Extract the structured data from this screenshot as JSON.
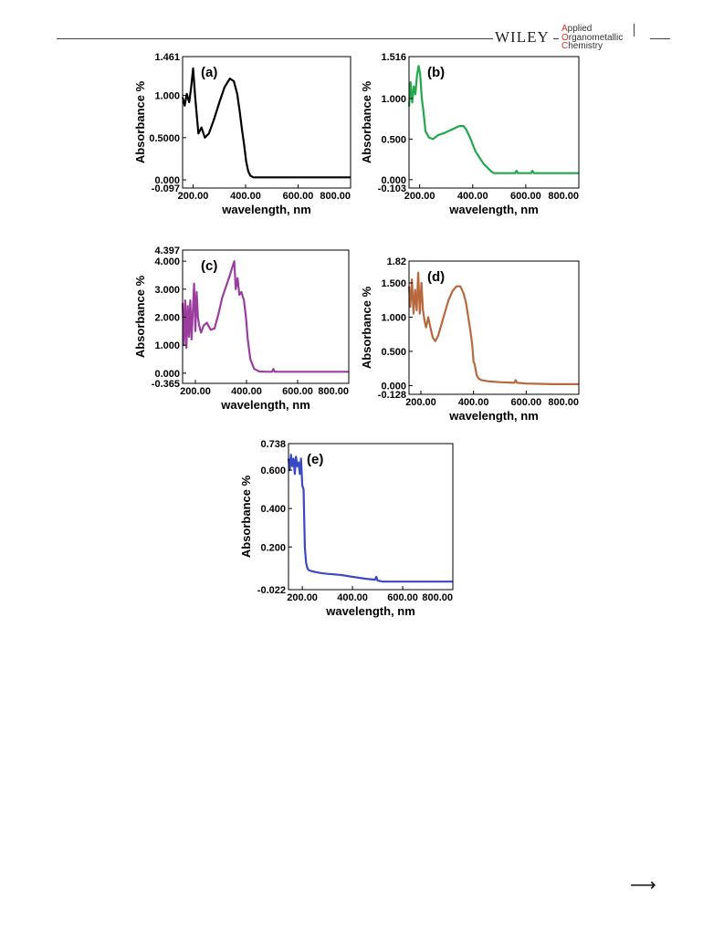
{
  "header": {
    "publisher": "WILEY",
    "journal_lines": [
      {
        "cap": "A",
        "rest": "pplied"
      },
      {
        "cap": "O",
        "rest": "rganometallic"
      },
      {
        "cap": "C",
        "rest": "hemistry"
      }
    ]
  },
  "footer": {
    "arrow": "⟶"
  },
  "chart_data": [
    {
      "id": "a",
      "type": "line",
      "panel_label": "(a)",
      "color": "#000000",
      "xlabel": "wavelength, nm",
      "ylabel": "Absorbance %",
      "xlim": [
        160,
        800
      ],
      "ylim": [
        -0.097,
        1.461
      ],
      "xticks": [
        200,
        400,
        600,
        800
      ],
      "xtick_labels": [
        "200.00",
        "400.00",
        "600.00",
        "800.00"
      ],
      "yticks": [
        -0.097,
        0,
        0.5,
        1.0,
        1.461
      ],
      "ytick_labels": [
        "-0.097",
        "0.000",
        "0.5000",
        "1.000",
        "1.461"
      ],
      "x": [
        160,
        168,
        176,
        185,
        192,
        200,
        208,
        220,
        232,
        245,
        260,
        280,
        300,
        320,
        340,
        355,
        368,
        378,
        386,
        395,
        402,
        410,
        418,
        430,
        460,
        500,
        600,
        700,
        800
      ],
      "y": [
        0.98,
        0.88,
        1.02,
        0.92,
        1.08,
        1.32,
        0.98,
        0.55,
        0.62,
        0.5,
        0.55,
        0.72,
        0.92,
        1.1,
        1.2,
        1.17,
        1.02,
        0.8,
        0.6,
        0.4,
        0.22,
        0.1,
        0.05,
        0.03,
        0.03,
        0.03,
        0.03,
        0.03,
        0.03
      ]
    },
    {
      "id": "b",
      "type": "line",
      "panel_label": "(b)",
      "color": "#21a84a",
      "xlabel": "wavelength, nm",
      "ylabel": "Absorbance %",
      "xlim": [
        160,
        800
      ],
      "ylim": [
        -0.103,
        1.516
      ],
      "xticks": [
        200,
        400,
        600,
        800
      ],
      "xtick_labels": [
        "200.00",
        "400.00",
        "600.00",
        "800.00"
      ],
      "yticks": [
        -0.103,
        0,
        0.5,
        1.0,
        1.516
      ],
      "ytick_labels": [
        "-0.103",
        "0.000",
        "0.500",
        "1.000",
        "1.516"
      ],
      "x": [
        160,
        166,
        172,
        178,
        184,
        190,
        196,
        202,
        208,
        214,
        222,
        235,
        250,
        270,
        290,
        310,
        330,
        350,
        365,
        375,
        390,
        410,
        440,
        470,
        480,
        500,
        560,
        565,
        570,
        620,
        625,
        630,
        700,
        800
      ],
      "y": [
        0.9,
        1.2,
        0.95,
        1.15,
        1.05,
        1.28,
        1.4,
        1.3,
        1.0,
        0.85,
        0.6,
        0.52,
        0.5,
        0.55,
        0.57,
        0.6,
        0.63,
        0.66,
        0.66,
        0.62,
        0.52,
        0.35,
        0.2,
        0.1,
        0.08,
        0.08,
        0.08,
        0.11,
        0.08,
        0.08,
        0.11,
        0.08,
        0.08,
        0.08
      ]
    },
    {
      "id": "c",
      "type": "line",
      "panel_label": "(c)",
      "color": "#9b3d9f",
      "xlabel": "wavelength, nm",
      "ylabel": "Absorbance %",
      "xlim": [
        150,
        800
      ],
      "ylim": [
        -0.365,
        4.397
      ],
      "xticks": [
        200,
        400,
        600,
        800
      ],
      "xtick_labels": [
        "200.00",
        "400.00",
        "600.00",
        "800.00"
      ],
      "yticks": [
        -0.365,
        0,
        1,
        2,
        3,
        4,
        4.397
      ],
      "ytick_labels": [
        "-0.365",
        "0.000",
        "1.000",
        "2.000",
        "3.000",
        "4.000",
        "4.397"
      ],
      "x": [
        150,
        155,
        160,
        165,
        170,
        175,
        180,
        185,
        190,
        195,
        200,
        205,
        210,
        215,
        222,
        232,
        245,
        260,
        275,
        290,
        305,
        320,
        335,
        345,
        352,
        358,
        365,
        372,
        380,
        390,
        398,
        405,
        415,
        430,
        450,
        480,
        500,
        505,
        510,
        600,
        700,
        800
      ],
      "y": [
        2.5,
        1.0,
        2.6,
        0.9,
        2.4,
        1.3,
        2.6,
        1.2,
        2.2,
        3.2,
        1.5,
        2.9,
        2.0,
        1.7,
        1.45,
        1.7,
        1.8,
        1.55,
        1.6,
        2.1,
        2.7,
        3.1,
        3.5,
        3.8,
        4.0,
        3.0,
        3.4,
        2.8,
        2.9,
        2.6,
        2.0,
        1.2,
        0.5,
        0.15,
        0.06,
        0.05,
        0.05,
        0.15,
        0.05,
        0.05,
        0.05,
        0.05
      ]
    },
    {
      "id": "d",
      "type": "line",
      "panel_label": "(d)",
      "color": "#b8683d",
      "xlabel": "wavelength, nm",
      "ylabel": "Absorbance %",
      "xlim": [
        155,
        800
      ],
      "ylim": [
        -0.128,
        1.82
      ],
      "xticks": [
        200,
        400,
        600,
        800
      ],
      "xtick_labels": [
        "200.00",
        "400.00",
        "600.00",
        "800.00"
      ],
      "yticks": [
        -0.128,
        0,
        0.5,
        1.0,
        1.5,
        1.82
      ],
      "ytick_labels": [
        "-0.128",
        "0.000",
        "0.500",
        "1.000",
        "1.500",
        "1.82"
      ],
      "x": [
        155,
        160,
        166,
        172,
        178,
        184,
        190,
        196,
        202,
        208,
        214,
        220,
        228,
        236,
        245,
        255,
        265,
        275,
        290,
        305,
        320,
        335,
        350,
        362,
        372,
        380,
        388,
        395,
        400,
        405,
        412,
        420,
        430,
        460,
        500,
        555,
        560,
        565,
        600,
        700,
        800
      ],
      "y": [
        1.45,
        1.15,
        1.55,
        1.05,
        1.4,
        1.1,
        1.65,
        1.05,
        1.5,
        1.1,
        0.95,
        0.85,
        1.0,
        0.85,
        0.7,
        0.65,
        0.72,
        0.85,
        1.05,
        1.25,
        1.38,
        1.45,
        1.45,
        1.35,
        1.2,
        1.0,
        0.8,
        0.6,
        0.35,
        0.3,
        0.15,
        0.1,
        0.08,
        0.06,
        0.05,
        0.04,
        0.08,
        0.04,
        0.03,
        0.02,
        0.02
      ]
    },
    {
      "id": "e",
      "type": "line",
      "panel_label": "(e)",
      "color": "#3a49c3",
      "xlabel": "wavelength, nm",
      "ylabel": "Absorbance %",
      "xlim": [
        145,
        800
      ],
      "ylim": [
        -0.022,
        0.738
      ],
      "xticks": [
        200,
        400,
        600,
        800
      ],
      "xtick_labels": [
        "200.00",
        "400.00",
        "600.00",
        "800.00"
      ],
      "yticks": [
        -0.022,
        0.2,
        0.4,
        0.6,
        0.738
      ],
      "ytick_labels": [
        "-0.022",
        "0.200",
        "0.400",
        "0.600",
        "0.738"
      ],
      "x": [
        145,
        150,
        155,
        160,
        165,
        170,
        175,
        180,
        185,
        190,
        195,
        200,
        205,
        210,
        215,
        220,
        225,
        235,
        250,
        270,
        300,
        350,
        400,
        450,
        490,
        495,
        500,
        520,
        600,
        700,
        800
      ],
      "y": [
        0.66,
        0.6,
        0.68,
        0.62,
        0.66,
        0.58,
        0.67,
        0.62,
        0.64,
        0.58,
        0.66,
        0.52,
        0.5,
        0.2,
        0.12,
        0.09,
        0.08,
        0.075,
        0.07,
        0.065,
        0.06,
        0.055,
        0.045,
        0.035,
        0.03,
        0.045,
        0.025,
        0.02,
        0.02,
        0.02,
        0.02
      ]
    }
  ]
}
